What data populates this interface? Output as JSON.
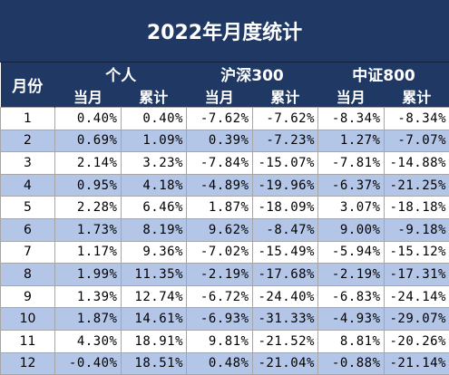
{
  "title": "2022年月度统计",
  "header": {
    "month": "月份",
    "groups": [
      "个人",
      "沪深300",
      "中证800"
    ],
    "sub": [
      "当月",
      "累计",
      "当月",
      "累计",
      "当月",
      "累计"
    ]
  },
  "rows": [
    [
      "1",
      "0.40%",
      "0.40%",
      "-7.62%",
      "-7.62%",
      "-8.34%",
      "-8.34%"
    ],
    [
      "2",
      "0.69%",
      "1.09%",
      "0.39%",
      "-7.23%",
      "1.27%",
      "-7.07%"
    ],
    [
      "3",
      "2.14%",
      "3.23%",
      "-7.84%",
      "-15.07%",
      "-7.81%",
      "-14.88%"
    ],
    [
      "4",
      "0.95%",
      "4.18%",
      "-4.89%",
      "-19.96%",
      "-6.37%",
      "-21.25%"
    ],
    [
      "5",
      "2.28%",
      "6.46%",
      "1.87%",
      "-18.09%",
      "3.07%",
      "-18.18%"
    ],
    [
      "6",
      "1.73%",
      "8.19%",
      "9.62%",
      "-8.47%",
      "9.00%",
      "-9.18%"
    ],
    [
      "7",
      "1.17%",
      "9.36%",
      "-7.02%",
      "-15.49%",
      "-5.94%",
      "-15.12%"
    ],
    [
      "8",
      "1.99%",
      "11.35%",
      "-2.19%",
      "-17.68%",
      "-2.19%",
      "-17.31%"
    ],
    [
      "9",
      "1.39%",
      "12.74%",
      "-6.72%",
      "-24.40%",
      "-6.83%",
      "-24.14%"
    ],
    [
      "10",
      "1.87%",
      "14.61%",
      "-6.93%",
      "-31.33%",
      "-4.93%",
      "-29.07%"
    ],
    [
      "11",
      "4.30%",
      "18.91%",
      "9.81%",
      "-21.52%",
      "8.81%",
      "-20.26%"
    ],
    [
      "12",
      "-0.40%",
      "18.51%",
      "0.48%",
      "-21.04%",
      "-0.88%",
      "-21.14%"
    ]
  ]
}
